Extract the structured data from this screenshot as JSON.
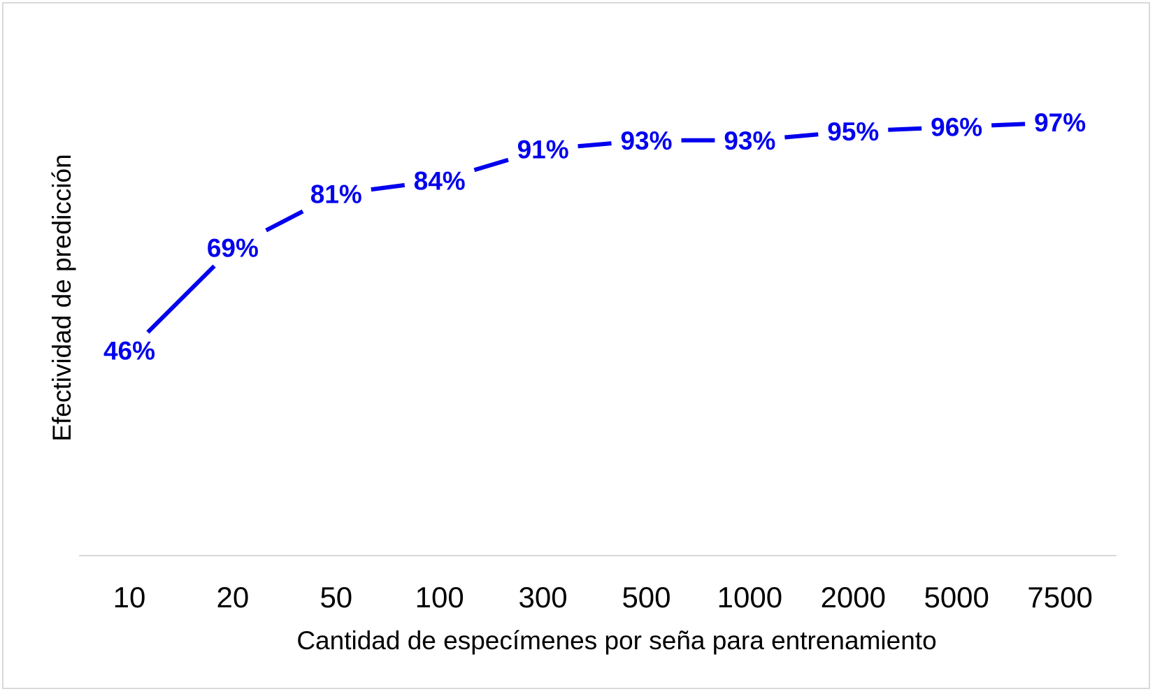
{
  "chart_data": {
    "type": "line",
    "title": "",
    "xlabel": "Cantidad de especímenes por seña para entrenamiento",
    "ylabel": "Efectividad de predicción",
    "categories": [
      "10",
      "20",
      "50",
      "100",
      "300",
      "500",
      "1000",
      "2000",
      "5000",
      "7500"
    ],
    "series": [
      {
        "values": [
          46,
          69,
          81,
          84,
          91,
          93,
          93,
          95,
          96,
          97
        ],
        "labels": [
          "46%",
          "69%",
          "81%",
          "84%",
          "91%",
          "93%",
          "93%",
          "95%",
          "96%",
          "97%"
        ],
        "color": "#0000ee"
      }
    ],
    "ylim": [
      0,
      110
    ],
    "grid": false,
    "legend": "none",
    "axis_color": "#d9d9d9"
  }
}
